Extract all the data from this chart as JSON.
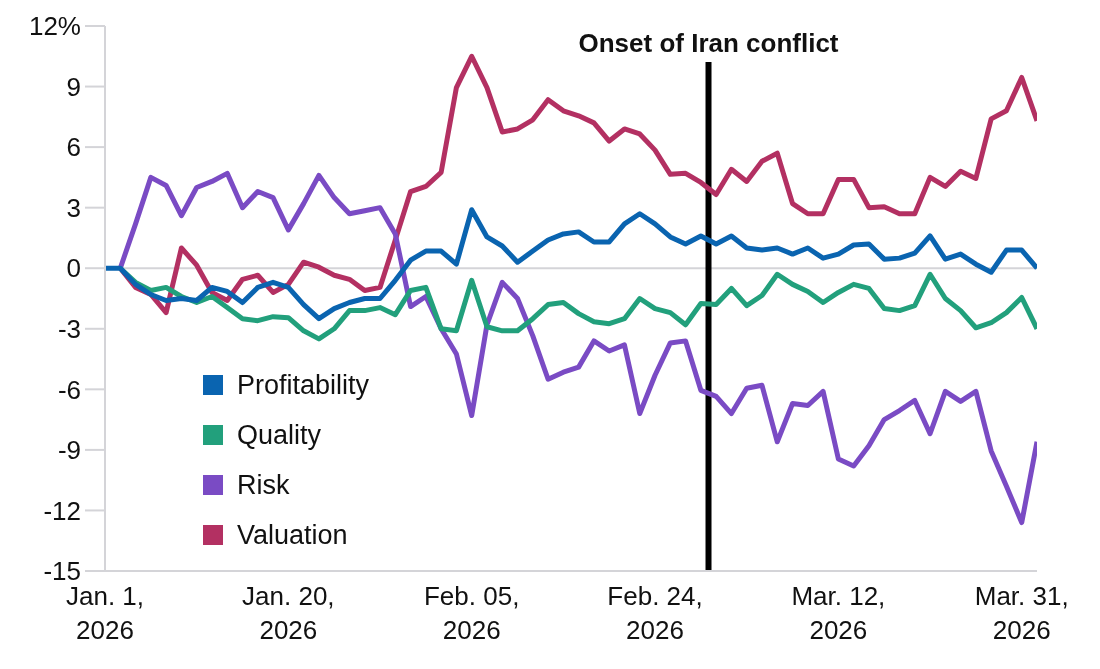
{
  "chart_data": {
    "type": "line",
    "categories": [
      "Jan. 1, 2026",
      null,
      null,
      null,
      null,
      null,
      null,
      null,
      null,
      null,
      null,
      null,
      "Jan. 20, 2026",
      null,
      null,
      null,
      null,
      null,
      null,
      null,
      null,
      null,
      null,
      null,
      "Feb. 05, 2026",
      null,
      null,
      null,
      null,
      null,
      null,
      null,
      null,
      null,
      null,
      null,
      "Feb. 24, 2026",
      null,
      null,
      null,
      null,
      null,
      null,
      null,
      null,
      null,
      null,
      null,
      "Mar. 12, 2026",
      null,
      null,
      null,
      null,
      null,
      null,
      null,
      null,
      null,
      null,
      null,
      "Mar. 31, 2026",
      null
    ],
    "series": [
      {
        "name": "Profitability",
        "color": "#0a64b0",
        "values": [
          0,
          0,
          -0.8,
          -1.3,
          -1.6,
          -1.5,
          -1.6,
          -0.95,
          -1.15,
          -1.7,
          -0.95,
          -0.7,
          -0.95,
          -1.8,
          -2.5,
          -2.0,
          -1.7,
          -1.5,
          -1.5,
          -0.6,
          0.4,
          0.85,
          0.85,
          0.2,
          2.9,
          1.55,
          1.1,
          0.3,
          0.85,
          1.4,
          1.7,
          1.8,
          1.3,
          1.3,
          2.2,
          2.7,
          2.2,
          1.55,
          1.2,
          1.6,
          1.2,
          1.6,
          1.0,
          0.9,
          1.0,
          0.7,
          1.0,
          0.5,
          0.7,
          1.15,
          1.2,
          0.45,
          0.5,
          0.75,
          1.6,
          0.45,
          0.7,
          0.2,
          -0.2,
          0.9,
          0.9,
          0
        ]
      },
      {
        "name": "Quality",
        "color": "#22a07c",
        "values": [
          null,
          0,
          -0.7,
          -1.1,
          -0.95,
          -1.4,
          -1.7,
          -1.4,
          -1.95,
          -2.5,
          -2.6,
          -2.4,
          -2.45,
          -3.1,
          -3.5,
          -3.0,
          -2.1,
          -2.1,
          -1.95,
          -2.3,
          -1.1,
          -0.95,
          -3.0,
          -3.1,
          -0.6,
          -2.9,
          -3.1,
          -3.1,
          -2.5,
          -1.8,
          -1.7,
          -2.25,
          -2.65,
          -2.75,
          -2.5,
          -1.5,
          -2.0,
          -2.2,
          -2.8,
          -1.75,
          -1.8,
          -1.0,
          -1.85,
          -1.35,
          -0.3,
          -0.8,
          -1.15,
          -1.7,
          -1.2,
          -0.8,
          -1.0,
          -2.0,
          -2.1,
          -1.85,
          -0.3,
          -1.5,
          -2.1,
          -2.95,
          -2.7,
          -2.2,
          -1.45,
          -3.0
        ]
      },
      {
        "name": "Risk",
        "color": "#7a4bc4",
        "values": [
          null,
          0,
          2.2,
          4.5,
          4.1,
          2.6,
          4.0,
          4.3,
          4.7,
          3.0,
          3.8,
          3.5,
          1.9,
          3.2,
          4.6,
          3.5,
          2.7,
          2.85,
          3.0,
          1.7,
          -1.9,
          -1.4,
          -3.0,
          -4.25,
          -7.3,
          -2.8,
          -0.7,
          -1.5,
          -3.35,
          -5.5,
          -5.15,
          -4.9,
          -3.6,
          -4.1,
          -3.8,
          -7.2,
          -5.3,
          -3.7,
          -3.6,
          -6.05,
          -6.35,
          -7.2,
          -5.95,
          -5.8,
          -8.6,
          -6.7,
          -6.8,
          -6.1,
          -9.45,
          -9.8,
          -8.8,
          -7.5,
          -7.05,
          -6.55,
          -8.2,
          -6.1,
          -6.6,
          -6.1,
          -9.05,
          -10.8,
          -12.6,
          -8.6
        ]
      },
      {
        "name": "Valuation",
        "color": "#b33062",
        "values": [
          null,
          0,
          -0.95,
          -1.3,
          -2.2,
          1.0,
          0.15,
          -1.2,
          -1.6,
          -0.55,
          -0.35,
          -1.2,
          -0.8,
          0.3,
          0.05,
          -0.35,
          -0.55,
          -1.1,
          -0.95,
          1.4,
          3.8,
          4.05,
          4.75,
          8.95,
          10.5,
          8.95,
          6.75,
          6.9,
          7.35,
          8.35,
          7.8,
          7.55,
          7.2,
          6.3,
          6.9,
          6.65,
          5.85,
          4.65,
          4.7,
          4.25,
          3.65,
          4.9,
          4.3,
          5.3,
          5.7,
          3.2,
          2.7,
          2.7,
          4.4,
          4.4,
          3.0,
          3.05,
          2.7,
          2.7,
          4.5,
          4.05,
          4.8,
          4.45,
          7.4,
          7.8,
          9.45,
          7.3
        ]
      }
    ],
    "ylim": [
      -15,
      12
    ],
    "yticks": [
      {
        "value": 12,
        "label": "12%"
      },
      9,
      6,
      3,
      0,
      -3,
      -6,
      -9,
      -12,
      -15
    ],
    "ref_lines": [
      {
        "axis": "y",
        "value": 0,
        "color": "#d4d4d8",
        "line_style": "solid"
      }
    ],
    "annotations": [
      "Onset of Iran conflict"
    ],
    "grid": false,
    "legend": "bottom left",
    "marker": "none",
    "line_style": "solid"
  }
}
